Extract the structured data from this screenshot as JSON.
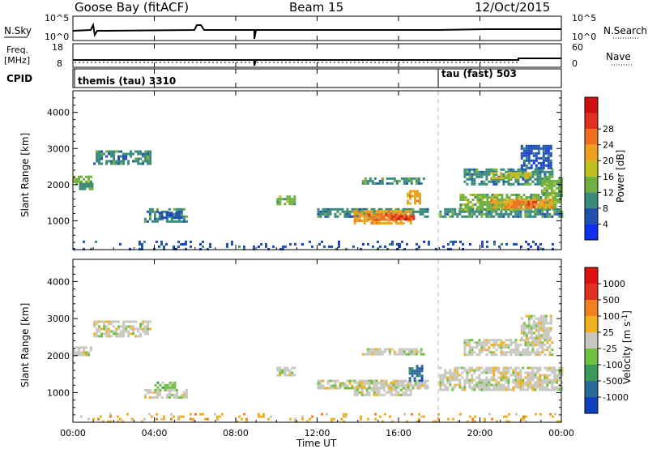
{
  "header": {
    "station": "Goose Bay (fitACF)",
    "beam": "Beam 15",
    "date": "12/Oct/2015"
  },
  "noise_panel": {
    "left_label": "N.Sky",
    "right_label": "N.Search",
    "left_ticks": [
      "10^5",
      "10^0"
    ],
    "right_ticks": [
      "10^5",
      "10^0"
    ]
  },
  "freq_panel": {
    "left_label_1": "Freq.",
    "left_label_2": "[MHz]",
    "right_label": "Nave",
    "left_ticks": [
      "18",
      "8"
    ],
    "right_ticks": [
      "60",
      "0"
    ]
  },
  "cpid_panel": {
    "label": "CPID",
    "programs": [
      {
        "name": "themis (tau) 3310",
        "start_hour": 0
      },
      {
        "name": "tau (fast) 503",
        "start_hour": 18
      }
    ]
  },
  "xaxis": {
    "title": "Time UT",
    "tick_labels": [
      "00:00",
      "04:00",
      "08:00",
      "12:00",
      "16:00",
      "20:00",
      "00:00"
    ]
  },
  "chart_data": [
    {
      "type": "heatmap",
      "name": "power",
      "ylabel": "Slant Range [km]",
      "ylim": [
        200,
        4600
      ],
      "xlim_hours": [
        0,
        24
      ],
      "y_ticks": [
        1000,
        2000,
        3000,
        4000
      ],
      "colorbar": {
        "title": "Power [dB]",
        "ticks": [
          "4",
          "8",
          "12",
          "16",
          "20",
          "24",
          "28"
        ],
        "colors": [
          "#1030f0",
          "#2050b0",
          "#3a8a7a",
          "#70b040",
          "#c0c020",
          "#f0a020",
          "#f07020",
          "#e03020",
          "#d01010"
        ]
      },
      "cells": [
        {
          "t0": 0.0,
          "t1": 0.9,
          "r0": 2000,
          "r1": 2250,
          "level": 3
        },
        {
          "t0": 0.3,
          "t1": 1.0,
          "r0": 1900,
          "r1": 2050,
          "level": 2
        },
        {
          "t0": 1.0,
          "t1": 3.8,
          "r0": 2550,
          "r1": 2950,
          "level": 2
        },
        {
          "t0": 3.5,
          "t1": 5.6,
          "r0": 950,
          "r1": 1350,
          "level": 2
        },
        {
          "t0": 4.2,
          "t1": 5.3,
          "r0": 1050,
          "r1": 1250,
          "level": 1
        },
        {
          "t0": 10.0,
          "t1": 10.9,
          "r0": 1450,
          "r1": 1700,
          "level": 3
        },
        {
          "t0": 12.0,
          "t1": 17.4,
          "r0": 1100,
          "r1": 1350,
          "level": 2
        },
        {
          "t0": 13.8,
          "t1": 16.6,
          "r0": 950,
          "r1": 1300,
          "level": 5
        },
        {
          "t0": 14.5,
          "t1": 16.6,
          "r0": 1000,
          "r1": 1200,
          "level": 6
        },
        {
          "t0": 15.5,
          "t1": 16.7,
          "r0": 1050,
          "r1": 1150,
          "level": 7
        },
        {
          "t0": 16.4,
          "t1": 17.0,
          "r0": 1500,
          "r1": 1850,
          "level": 5
        },
        {
          "t0": 14.2,
          "t1": 17.3,
          "r0": 2050,
          "r1": 2200,
          "level": 2
        },
        {
          "t0": 18.0,
          "t1": 24.0,
          "r0": 1100,
          "r1": 1350,
          "level": 2
        },
        {
          "t0": 19.0,
          "t1": 24.0,
          "r0": 1300,
          "r1": 1750,
          "level": 3
        },
        {
          "t0": 20.5,
          "t1": 23.5,
          "r0": 1350,
          "r1": 1600,
          "level": 5
        },
        {
          "t0": 21.5,
          "t1": 22.8,
          "r0": 1400,
          "r1": 1550,
          "level": 6
        },
        {
          "t0": 19.2,
          "t1": 23.5,
          "r0": 2000,
          "r1": 2450,
          "level": 2
        },
        {
          "t0": 20.5,
          "t1": 22.5,
          "r0": 2150,
          "r1": 2350,
          "level": 4
        },
        {
          "t0": 22.0,
          "t1": 23.5,
          "r0": 2450,
          "r1": 3100,
          "level": 1
        },
        {
          "t0": 23.0,
          "t1": 24.0,
          "r0": 1700,
          "r1": 2200,
          "level": 3
        },
        {
          "t0": 0.0,
          "t1": 24.0,
          "r0": 200,
          "r1": 450,
          "level": 1
        }
      ]
    },
    {
      "type": "heatmap",
      "name": "velocity",
      "ylabel": "Slant Range [km]",
      "ylim": [
        200,
        4600
      ],
      "xlim_hours": [
        0,
        24
      ],
      "y_ticks": [
        1000,
        2000,
        3000,
        4000
      ],
      "colorbar": {
        "title": "Velocity [m s^-1]",
        "ticks": [
          "1000",
          "500",
          "100",
          "25",
          "-25",
          "-100",
          "-500",
          "-1000"
        ],
        "colors": [
          "#1040c0",
          "#2a6a9a",
          "#3a9a5a",
          "#70c040",
          "#c8c8c0",
          "#f0b020",
          "#f08020",
          "#e03020",
          "#e01010"
        ]
      },
      "cells": [
        {
          "t0": 0.0,
          "t1": 0.9,
          "r0": 2000,
          "r1": 2250,
          "level": 4
        },
        {
          "t0": 1.0,
          "t1": 3.8,
          "r0": 2550,
          "r1": 2950,
          "level": 4
        },
        {
          "t0": 3.5,
          "t1": 5.6,
          "r0": 850,
          "r1": 1100,
          "level": 4
        },
        {
          "t0": 4.0,
          "t1": 5.0,
          "r0": 1050,
          "r1": 1300,
          "level": 3
        },
        {
          "t0": 10.0,
          "t1": 10.9,
          "r0": 1450,
          "r1": 1700,
          "level": 4
        },
        {
          "t0": 12.0,
          "t1": 17.4,
          "r0": 1100,
          "r1": 1350,
          "level": 4
        },
        {
          "t0": 13.8,
          "t1": 16.6,
          "r0": 950,
          "r1": 1300,
          "level": 4
        },
        {
          "t0": 16.5,
          "t1": 17.2,
          "r0": 1350,
          "r1": 1750,
          "level": 1
        },
        {
          "t0": 14.2,
          "t1": 17.3,
          "r0": 2050,
          "r1": 2200,
          "level": 4
        },
        {
          "t0": 18.0,
          "t1": 24.0,
          "r0": 1100,
          "r1": 1700,
          "level": 4
        },
        {
          "t0": 19.2,
          "t1": 23.5,
          "r0": 2000,
          "r1": 2450,
          "level": 4
        },
        {
          "t0": 22.0,
          "t1": 23.5,
          "r0": 2450,
          "r1": 3100,
          "level": 4
        },
        {
          "t0": 0.0,
          "t1": 24.0,
          "r0": 200,
          "r1": 450,
          "level": 5
        }
      ]
    }
  ]
}
